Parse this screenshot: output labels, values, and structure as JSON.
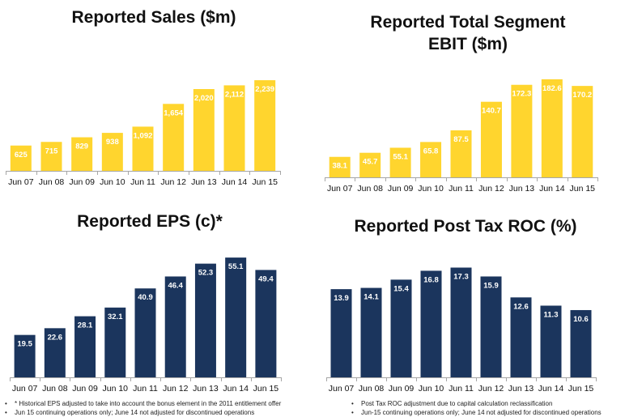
{
  "chart_data": [
    {
      "type": "bar",
      "title": "Reported Sales ($m)",
      "categories": [
        "Jun 07",
        "Jun 08",
        "Jun 09",
        "Jun 10",
        "Jun 11",
        "Jun 12",
        "Jun 13",
        "Jun 14",
        "Jun 15"
      ],
      "values": [
        625,
        715,
        829,
        938,
        1092,
        1654,
        2020,
        2112,
        2239
      ],
      "value_labels": [
        "625",
        "715",
        "829",
        "938",
        "1,092",
        "1,654",
        "2,020",
        "2,112",
        "2,239"
      ],
      "ylim": [
        0,
        2400
      ],
      "color": "#FFD52E",
      "label_color": "#ffffff",
      "grid": false
    },
    {
      "type": "bar",
      "title": "Reported Total Segment EBIT ($m)",
      "categories": [
        "Jun 07",
        "Jun 08",
        "Jun 09",
        "Jun 10",
        "Jun 11",
        "Jun 12",
        "Jun 13",
        "Jun 14",
        "Jun 15"
      ],
      "values": [
        38.1,
        45.7,
        55.1,
        65.8,
        87.5,
        140.7,
        172.3,
        182.6,
        170.2
      ],
      "value_labels": [
        "38.1",
        "45.7",
        "55.1",
        "65.8",
        "87.5",
        "140.7",
        "172.3",
        "182.6",
        "170.2"
      ],
      "ylim": [
        0,
        190
      ],
      "color": "#FFD52E",
      "label_color": "#ffffff",
      "grid": false
    },
    {
      "type": "bar",
      "title": "Reported EPS (c)*",
      "categories": [
        "Jun 07",
        "Jun 08",
        "Jun 09",
        "Jun 10",
        "Jun 11",
        "Jun 12",
        "Jun 13",
        "Jun 14",
        "Jun 15"
      ],
      "values": [
        19.5,
        22.6,
        28.1,
        32.1,
        40.9,
        46.4,
        52.3,
        55.1,
        49.4
      ],
      "value_labels": [
        "19.5",
        "22.6",
        "28.1",
        "32.1",
        "40.9",
        "46.4",
        "52.3",
        "55.1",
        "49.4"
      ],
      "ylim": [
        0,
        57
      ],
      "color": "#1B355D",
      "label_color": "#ffffff",
      "grid": false
    },
    {
      "type": "bar",
      "title": "Reported Post Tax ROC (%)",
      "categories": [
        "Jun 07",
        "Jun 08",
        "Jun 09",
        "Jun 10",
        "Jun 11",
        "Jun 12",
        "Jun 13",
        "Jun 14",
        "Jun 15"
      ],
      "values": [
        13.9,
        14.1,
        15.4,
        16.8,
        17.3,
        15.9,
        12.6,
        11.3,
        10.6
      ],
      "value_labels": [
        "13.9",
        "14.1",
        "15.4",
        "16.8",
        "17.3",
        "15.9",
        "12.6",
        "11.3",
        "10.6"
      ],
      "ylim": [
        0,
        18
      ],
      "color": "#1B355D",
      "label_color": "#ffffff",
      "grid": false
    }
  ],
  "titles": {
    "sales": "Reported Sales ($m)",
    "ebit_line1": "Reported Total Segment",
    "ebit_line2": "EBIT ($m)",
    "eps": "Reported EPS (c)*",
    "roc": "Reported Post Tax ROC (%)"
  },
  "notes": {
    "eps": [
      "* Historical EPS adjusted to take into account the bonus element in the 2011 entitlement offer",
      "Jun 15 continuing operations only; June 14 not adjusted for discontinued operations"
    ],
    "roc": [
      "Post Tax ROC adjustment due to capital calculation reclassification",
      "Jun-15 continuing operations only; June 14 not adjusted for discontinued operations"
    ],
    "bullet": "•"
  }
}
